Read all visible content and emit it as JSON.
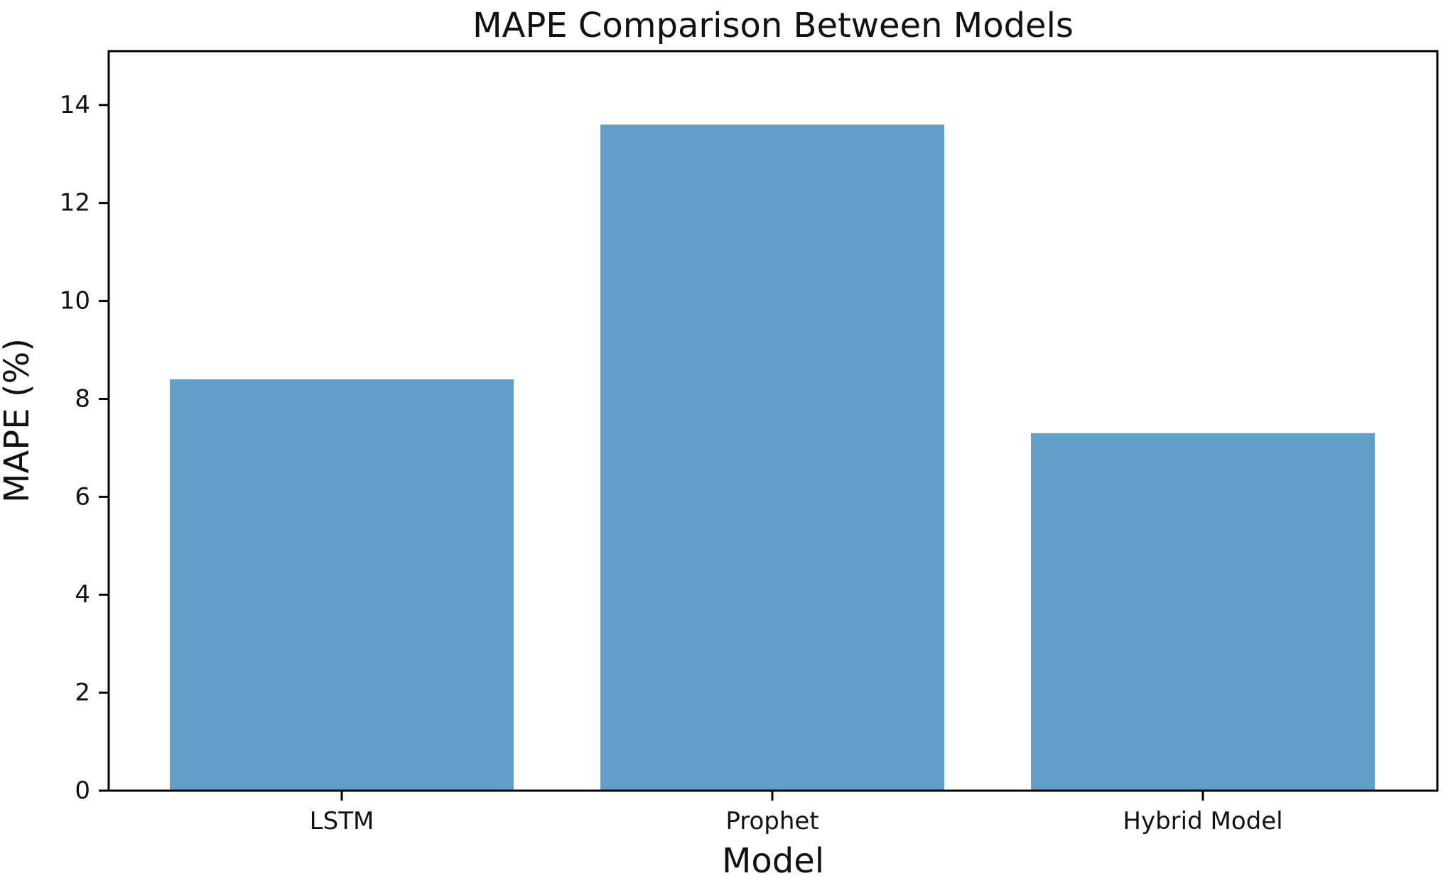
{
  "chart_data": {
    "type": "bar",
    "title": "MAPE Comparison Between Models",
    "xlabel": "Model",
    "ylabel": "MAPE (%)",
    "categories": [
      "LSTM",
      "Prophet",
      "Hybrid Model"
    ],
    "values": [
      8.4,
      13.6,
      7.3
    ],
    "yticks": [
      0,
      2,
      4,
      6,
      8,
      10,
      12,
      14
    ],
    "ylim": [
      0,
      15.1
    ],
    "bar_color": "#62A0CA",
    "axis_color": "#000000",
    "text_color": "#111111",
    "grid": false,
    "legend_position": "none"
  }
}
